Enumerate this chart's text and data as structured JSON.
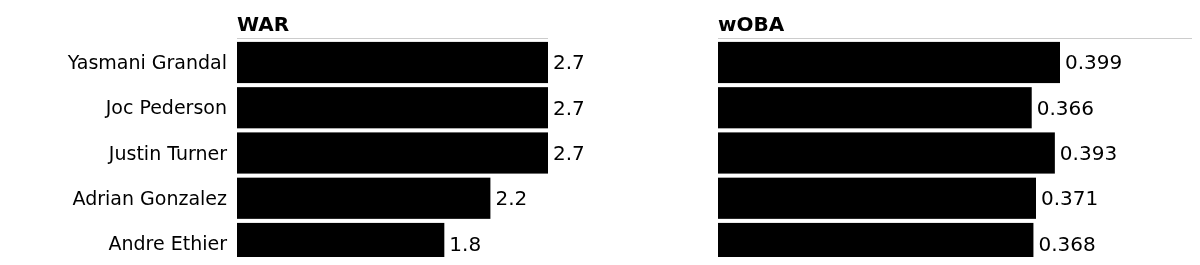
{
  "chart_data": [
    {
      "type": "bar",
      "title": "WAR",
      "orientation": "horizontal",
      "categories": [
        "Yasmani Grandal",
        "Joc Pederson",
        "Justin Turner",
        "Adrian Gonzalez",
        "Andre Ethier"
      ],
      "values": [
        2.7,
        2.7,
        2.7,
        2.2,
        1.8
      ],
      "color": "#000000",
      "data_labels": true,
      "tick_labels": "y"
    },
    {
      "type": "bar",
      "title": "wOBA",
      "orientation": "horizontal",
      "categories": [
        null,
        null,
        null,
        null,
        null
      ],
      "values": [
        0.399,
        0.366,
        0.393,
        0.371,
        0.368
      ],
      "color": "#000000",
      "data_labels": true,
      "tick_labels": false
    }
  ]
}
